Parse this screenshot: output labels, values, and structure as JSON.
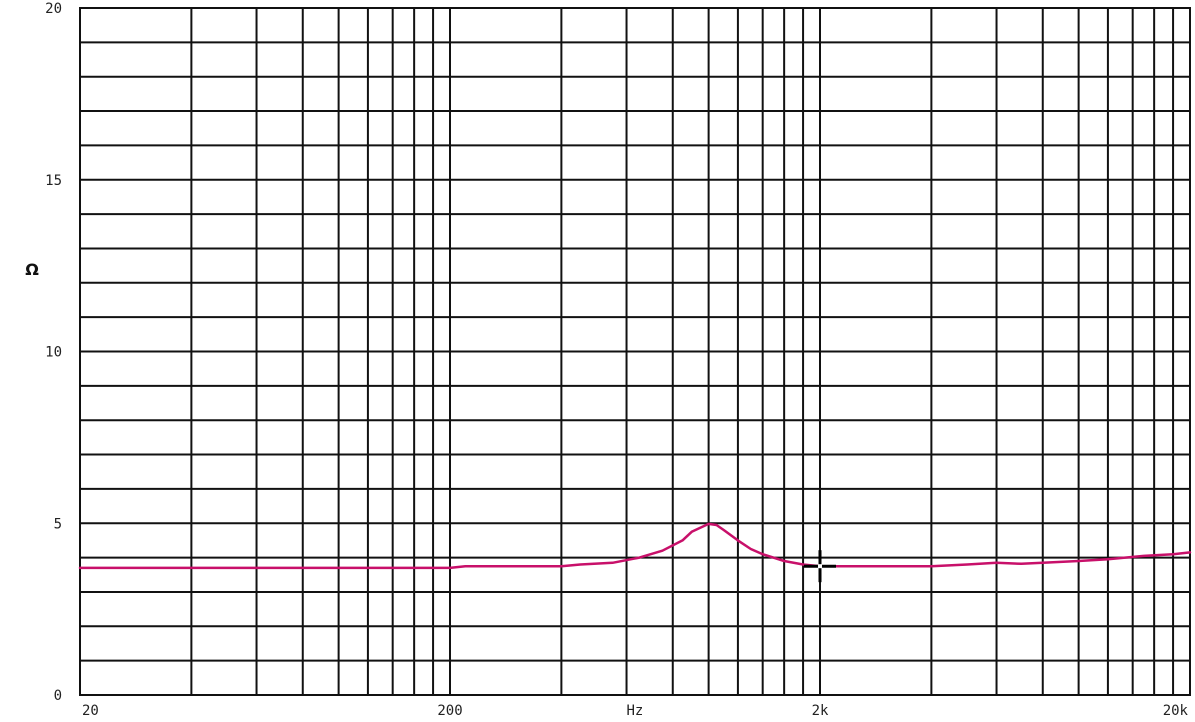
{
  "chart_data": {
    "type": "line",
    "title": "",
    "xlabel": "Hz",
    "ylabel": "Ω",
    "x_scale": "log",
    "xlim": [
      20,
      20000
    ],
    "ylim": [
      0,
      20
    ],
    "grid": true,
    "x_ticks": [
      {
        "value": 20,
        "label": "20"
      },
      {
        "value": 200,
        "label": "200"
      },
      {
        "value": 2000,
        "label": "2k"
      },
      {
        "value": 20000,
        "label": "20k"
      }
    ],
    "y_ticks": [
      {
        "value": 0,
        "label": "0"
      },
      {
        "value": 5,
        "label": "5"
      },
      {
        "value": 10,
        "label": "10"
      },
      {
        "value": 15,
        "label": "15"
      },
      {
        "value": 20,
        "label": "20"
      }
    ],
    "x_unit_label": {
      "value": 632,
      "label": "Hz"
    },
    "series": [
      {
        "color": "#c8106a",
        "points": [
          [
            20,
            3.7
          ],
          [
            50,
            3.7
          ],
          [
            100,
            3.7
          ],
          [
            200,
            3.7
          ],
          [
            220,
            3.75
          ],
          [
            300,
            3.75
          ],
          [
            400,
            3.75
          ],
          [
            450,
            3.8
          ],
          [
            550,
            3.85
          ],
          [
            650,
            4.0
          ],
          [
            750,
            4.2
          ],
          [
            850,
            4.5
          ],
          [
            900,
            4.75
          ],
          [
            1000,
            4.98
          ],
          [
            1050,
            4.95
          ],
          [
            1100,
            4.8
          ],
          [
            1200,
            4.5
          ],
          [
            1300,
            4.25
          ],
          [
            1400,
            4.1
          ],
          [
            1600,
            3.9
          ],
          [
            1800,
            3.8
          ],
          [
            2000,
            3.75
          ],
          [
            2500,
            3.75
          ],
          [
            3000,
            3.75
          ],
          [
            4000,
            3.75
          ],
          [
            5000,
            3.8
          ],
          [
            6000,
            3.85
          ],
          [
            7000,
            3.82
          ],
          [
            8000,
            3.85
          ],
          [
            10000,
            3.9
          ],
          [
            12000,
            3.95
          ],
          [
            15000,
            4.05
          ],
          [
            18000,
            4.1
          ],
          [
            20000,
            4.15
          ]
        ]
      }
    ],
    "cursor": {
      "x": 2000,
      "y": 3.75
    }
  }
}
